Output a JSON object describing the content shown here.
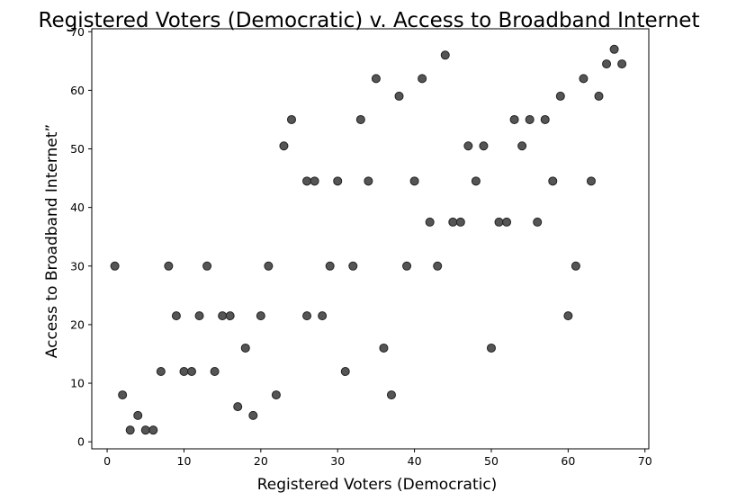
{
  "chart_data": {
    "type": "scatter",
    "title": "Registered Voters (Democratic) v. Access to Broadband Internet",
    "xlabel": "Registered Voters (Democratic)",
    "ylabel": "Access to Broadband Internet”",
    "xlim": [
      -2,
      70.5
    ],
    "ylim": [
      -1.2,
      70.5
    ],
    "xticks": [
      0,
      10,
      20,
      30,
      40,
      50,
      60,
      70
    ],
    "yticks": [
      0,
      10,
      20,
      30,
      40,
      50,
      60,
      70
    ],
    "grid": false,
    "marker_color": "#555555",
    "points": [
      {
        "x": 1,
        "y": 30
      },
      {
        "x": 2,
        "y": 8
      },
      {
        "x": 3,
        "y": 2
      },
      {
        "x": 4,
        "y": 4.5
      },
      {
        "x": 5,
        "y": 2
      },
      {
        "x": 6,
        "y": 2
      },
      {
        "x": 7,
        "y": 12
      },
      {
        "x": 8,
        "y": 30
      },
      {
        "x": 9,
        "y": 21.5
      },
      {
        "x": 10,
        "y": 12
      },
      {
        "x": 11,
        "y": 12
      },
      {
        "x": 12,
        "y": 21.5
      },
      {
        "x": 13,
        "y": 30
      },
      {
        "x": 14,
        "y": 12
      },
      {
        "x": 15,
        "y": 21.5
      },
      {
        "x": 16,
        "y": 21.5
      },
      {
        "x": 17,
        "y": 6
      },
      {
        "x": 18,
        "y": 16
      },
      {
        "x": 19,
        "y": 4.5
      },
      {
        "x": 20,
        "y": 21.5
      },
      {
        "x": 21,
        "y": 30
      },
      {
        "x": 22,
        "y": 8
      },
      {
        "x": 23,
        "y": 50.5
      },
      {
        "x": 24,
        "y": 55
      },
      {
        "x": 26,
        "y": 44.5
      },
      {
        "x": 26,
        "y": 21.5
      },
      {
        "x": 27,
        "y": 44.5
      },
      {
        "x": 28,
        "y": 21.5
      },
      {
        "x": 29,
        "y": 30
      },
      {
        "x": 30,
        "y": 44.5
      },
      {
        "x": 31,
        "y": 12
      },
      {
        "x": 32,
        "y": 30
      },
      {
        "x": 33,
        "y": 55
      },
      {
        "x": 34,
        "y": 44.5
      },
      {
        "x": 35,
        "y": 62
      },
      {
        "x": 36,
        "y": 16
      },
      {
        "x": 37,
        "y": 8
      },
      {
        "x": 38,
        "y": 59
      },
      {
        "x": 39,
        "y": 30
      },
      {
        "x": 40,
        "y": 44.5
      },
      {
        "x": 41,
        "y": 62
      },
      {
        "x": 42,
        "y": 37.5
      },
      {
        "x": 43,
        "y": 30
      },
      {
        "x": 44,
        "y": 66
      },
      {
        "x": 45,
        "y": 37.5
      },
      {
        "x": 46,
        "y": 37.5
      },
      {
        "x": 47,
        "y": 50.5
      },
      {
        "x": 48,
        "y": 44.5
      },
      {
        "x": 49,
        "y": 50.5
      },
      {
        "x": 50,
        "y": 16
      },
      {
        "x": 51,
        "y": 37.5
      },
      {
        "x": 52,
        "y": 37.5
      },
      {
        "x": 53,
        "y": 55
      },
      {
        "x": 54,
        "y": 50.5
      },
      {
        "x": 55,
        "y": 55
      },
      {
        "x": 56,
        "y": 37.5
      },
      {
        "x": 57,
        "y": 55
      },
      {
        "x": 58,
        "y": 44.5
      },
      {
        "x": 59,
        "y": 59
      },
      {
        "x": 60,
        "y": 21.5
      },
      {
        "x": 61,
        "y": 30
      },
      {
        "x": 62,
        "y": 62
      },
      {
        "x": 63,
        "y": 44.5
      },
      {
        "x": 64,
        "y": 59
      },
      {
        "x": 65,
        "y": 64.5
      },
      {
        "x": 66,
        "y": 67
      },
      {
        "x": 67,
        "y": 64.5
      }
    ]
  }
}
